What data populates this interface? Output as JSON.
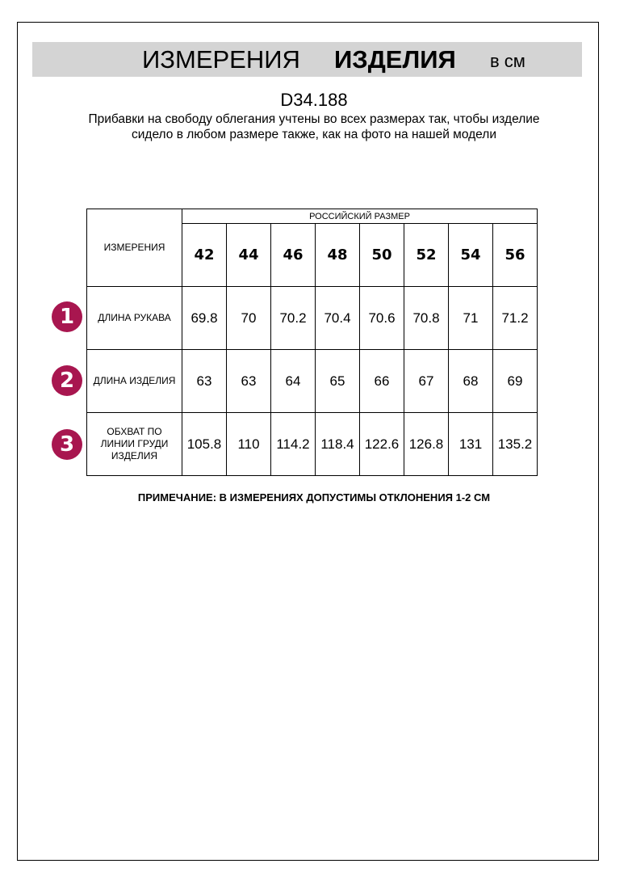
{
  "header": {
    "title_regular": "ИЗМЕРЕНИЯ",
    "title_bold": "ИЗДЕЛИЯ",
    "unit": "в см"
  },
  "article_code": "D34.188",
  "description": "Прибавки на свободу облегания учтены во всех размерах так, чтобы изделие сидело в любом размере также, как на фото на нашей модели",
  "badge_color": "#a8164f",
  "table": {
    "corner_label": "ИЗМЕРЕНИЯ",
    "group_header": "РОССИЙСКИЙ РАЗМЕР",
    "sizes": [
      "42",
      "44",
      "46",
      "48",
      "50",
      "52",
      "54",
      "56"
    ],
    "rows": [
      {
        "number": "1",
        "label": "ДЛИНА РУКАВА",
        "values": [
          "69.8",
          "70",
          "70.2",
          "70.4",
          "70.6",
          "70.8",
          "71",
          "71.2"
        ]
      },
      {
        "number": "2",
        "label": "ДЛИНА ИЗДЕЛИЯ",
        "values": [
          "63",
          "63",
          "64",
          "65",
          "66",
          "67",
          "68",
          "69"
        ]
      },
      {
        "number": "3",
        "label": "ОБХВАТ ПО ЛИНИИ ГРУДИ ИЗДЕЛИЯ",
        "values": [
          "105.8",
          "110",
          "114.2",
          "118.4",
          "122.6",
          "126.8",
          "131",
          "135.2"
        ]
      }
    ]
  },
  "note": "ПРИМЕЧАНИЕ: В ИЗМЕРЕНИЯХ ДОПУСТИМЫ ОТКЛОНЕНИЯ 1-2 СМ"
}
